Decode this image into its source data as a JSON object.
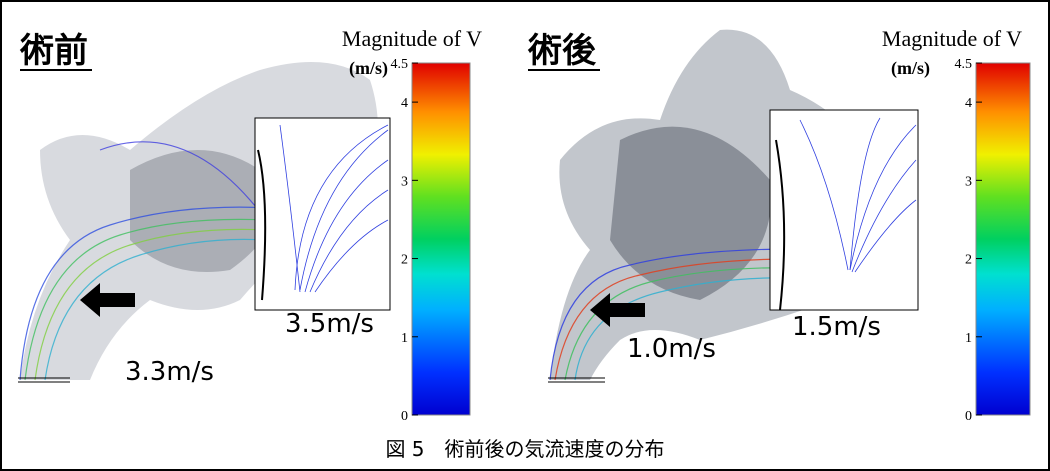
{
  "panels": [
    {
      "title": "術前",
      "colorbar": {
        "title": "Magnitude of V",
        "unit": "(m/s)",
        "lim": [
          0,
          4.5
        ],
        "ticks": [
          0,
          1,
          2,
          3,
          4,
          4.5
        ]
      },
      "annotations": [
        "3.5m/s",
        "3.3m/s"
      ]
    },
    {
      "title": "術後",
      "colorbar": {
        "title": "Magnitude of V",
        "unit": "(m/s)",
        "lim": [
          0,
          4.5
        ],
        "ticks": [
          0,
          1,
          2,
          3,
          4,
          4.5
        ]
      },
      "annotations": [
        "1.5m/s",
        "1.0m/s"
      ]
    }
  ],
  "caption": "図 5　術前後の気流速度の分布"
}
